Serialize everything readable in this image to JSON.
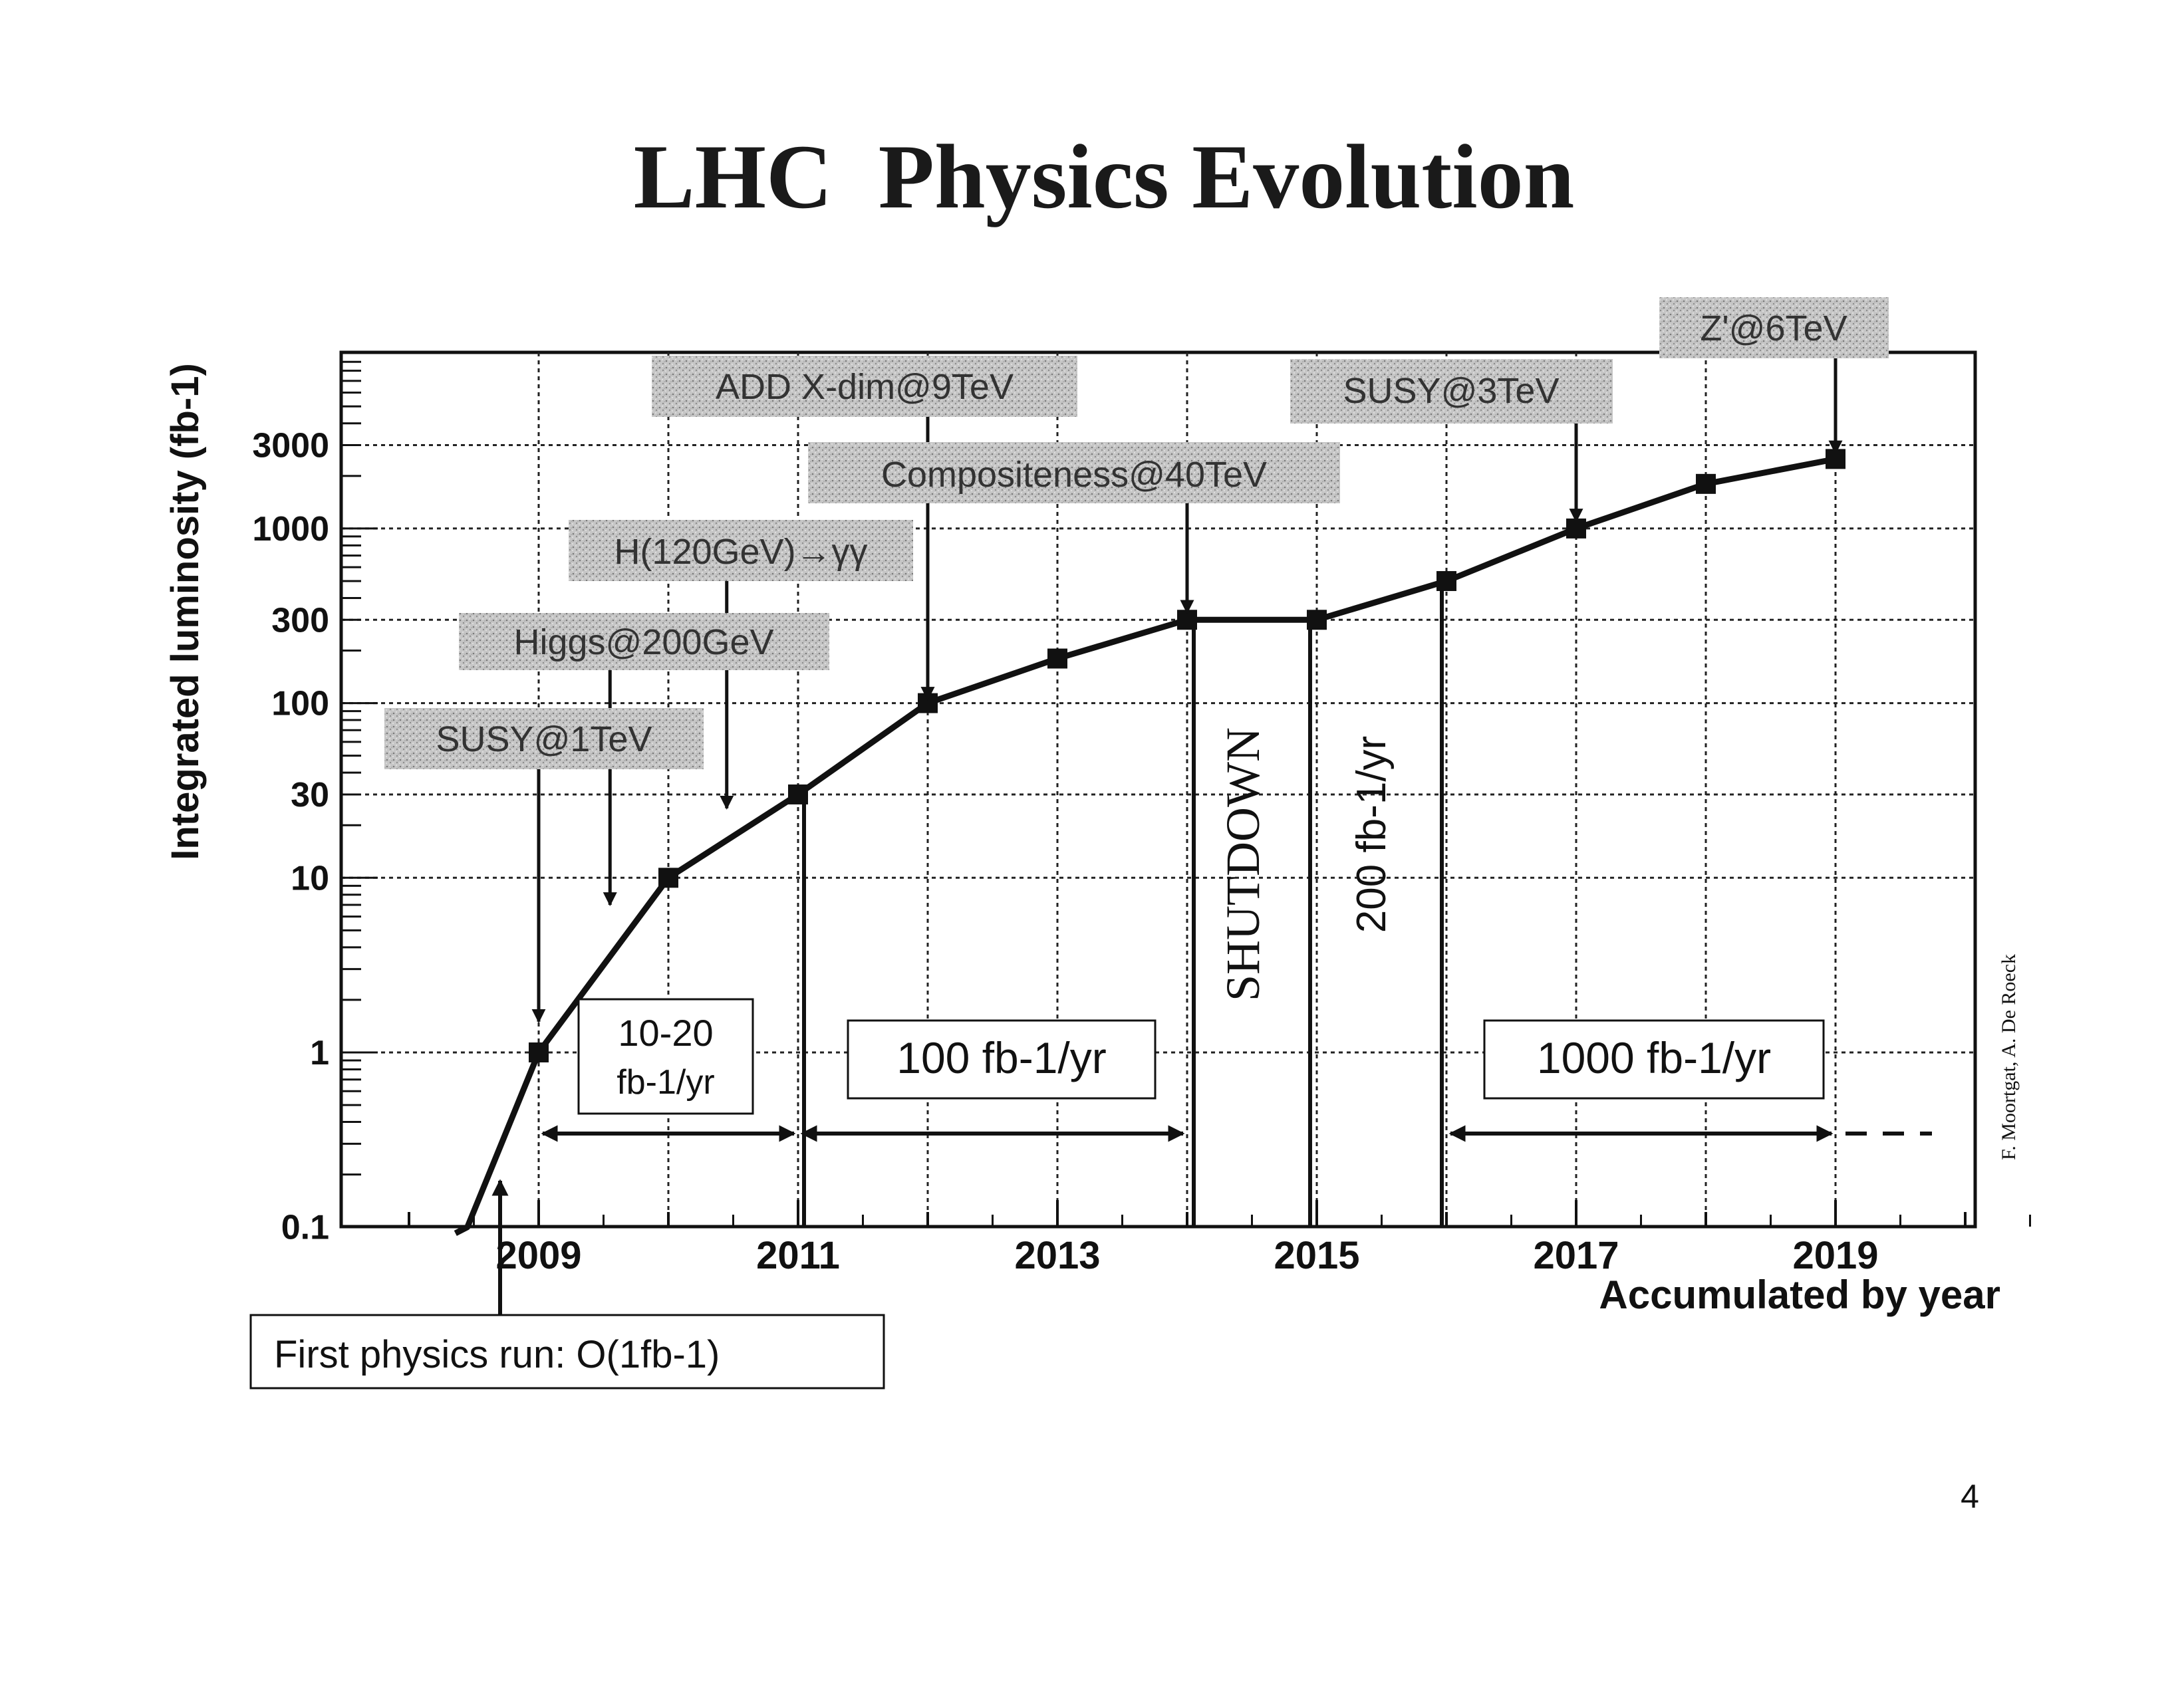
{
  "page": {
    "title": "LHC  Physics Evolution",
    "page_number": "4",
    "credit": "F. Moortgat, A. De Roeck"
  },
  "chart_data": {
    "type": "line",
    "title": "LHC  Physics Evolution",
    "xlabel": "Accumulated by year",
    "ylabel": "Integrated luminosity (fb-1)",
    "yscale": "log",
    "xlim": [
      2007.5,
      2020.5
    ],
    "ylim": [
      0.1,
      10000
    ],
    "grid": true,
    "x_tick_labels": [
      {
        "x": 2009,
        "label": "2009"
      },
      {
        "x": 2011,
        "label": "2011"
      },
      {
        "x": 2013,
        "label": "2013"
      },
      {
        "x": 2015,
        "label": "2015"
      },
      {
        "x": 2017,
        "label": "2017"
      },
      {
        "x": 2019,
        "label": "2019"
      }
    ],
    "y_tick_labels": [
      {
        "y": 0.1,
        "label": "0.1"
      },
      {
        "y": 1,
        "label": "1"
      },
      {
        "y": 10,
        "label": "10"
      },
      {
        "y": 30,
        "label": "30"
      },
      {
        "y": 100,
        "label": "100"
      },
      {
        "y": 300,
        "label": "300"
      },
      {
        "y": 1000,
        "label": "1000"
      },
      {
        "y": 3000,
        "label": "3000"
      }
    ],
    "series": [
      {
        "x": [
          2008.45,
          2009,
          2010,
          2011,
          2012,
          2013,
          2014,
          2015,
          2016,
          2017,
          2018,
          2019
        ],
        "y": [
          0.1,
          1,
          10,
          30,
          100,
          180,
          300,
          300,
          500,
          1000,
          1800,
          2500
        ]
      }
    ],
    "annotations": {
      "physics_reach": [
        {
          "label": "SUSY@1TeV",
          "arrow_x": 2009,
          "arrow_y": 1.5
        },
        {
          "label": "Higgs@200GeV",
          "arrow_x": 2009.55,
          "arrow_y": 7
        },
        {
          "label": "H(120GeV)→γγ",
          "arrow_x": 2010.45,
          "arrow_y": 25
        },
        {
          "label": "ADD X-dim@9TeV",
          "arrow_x": 2012,
          "arrow_y": 105
        },
        {
          "label": "Compositeness@40TeV",
          "arrow_x": 2014,
          "arrow_y": 330
        },
        {
          "label": "SUSY@3TeV",
          "arrow_x": 2017,
          "arrow_y": 1100
        },
        {
          "label": "Z'@6TeV",
          "arrow_x": 2019,
          "arrow_y": 2700
        }
      ],
      "run_periods": {
        "period_1": {
          "line1": "10-20",
          "line2": "fb-1/yr",
          "from": 2009,
          "to": 2011
        },
        "period_2": {
          "text": "100 fb-1/yr",
          "from": 2011,
          "to": 2014
        },
        "shutdown": "SHUTDOWN",
        "period_3": "200 fb-1/yr",
        "period_4": {
          "text": "1000 fb-1/yr",
          "from": 2016,
          "to": 2019
        }
      },
      "first_run": "First physics run: O(1fb-1)"
    }
  }
}
